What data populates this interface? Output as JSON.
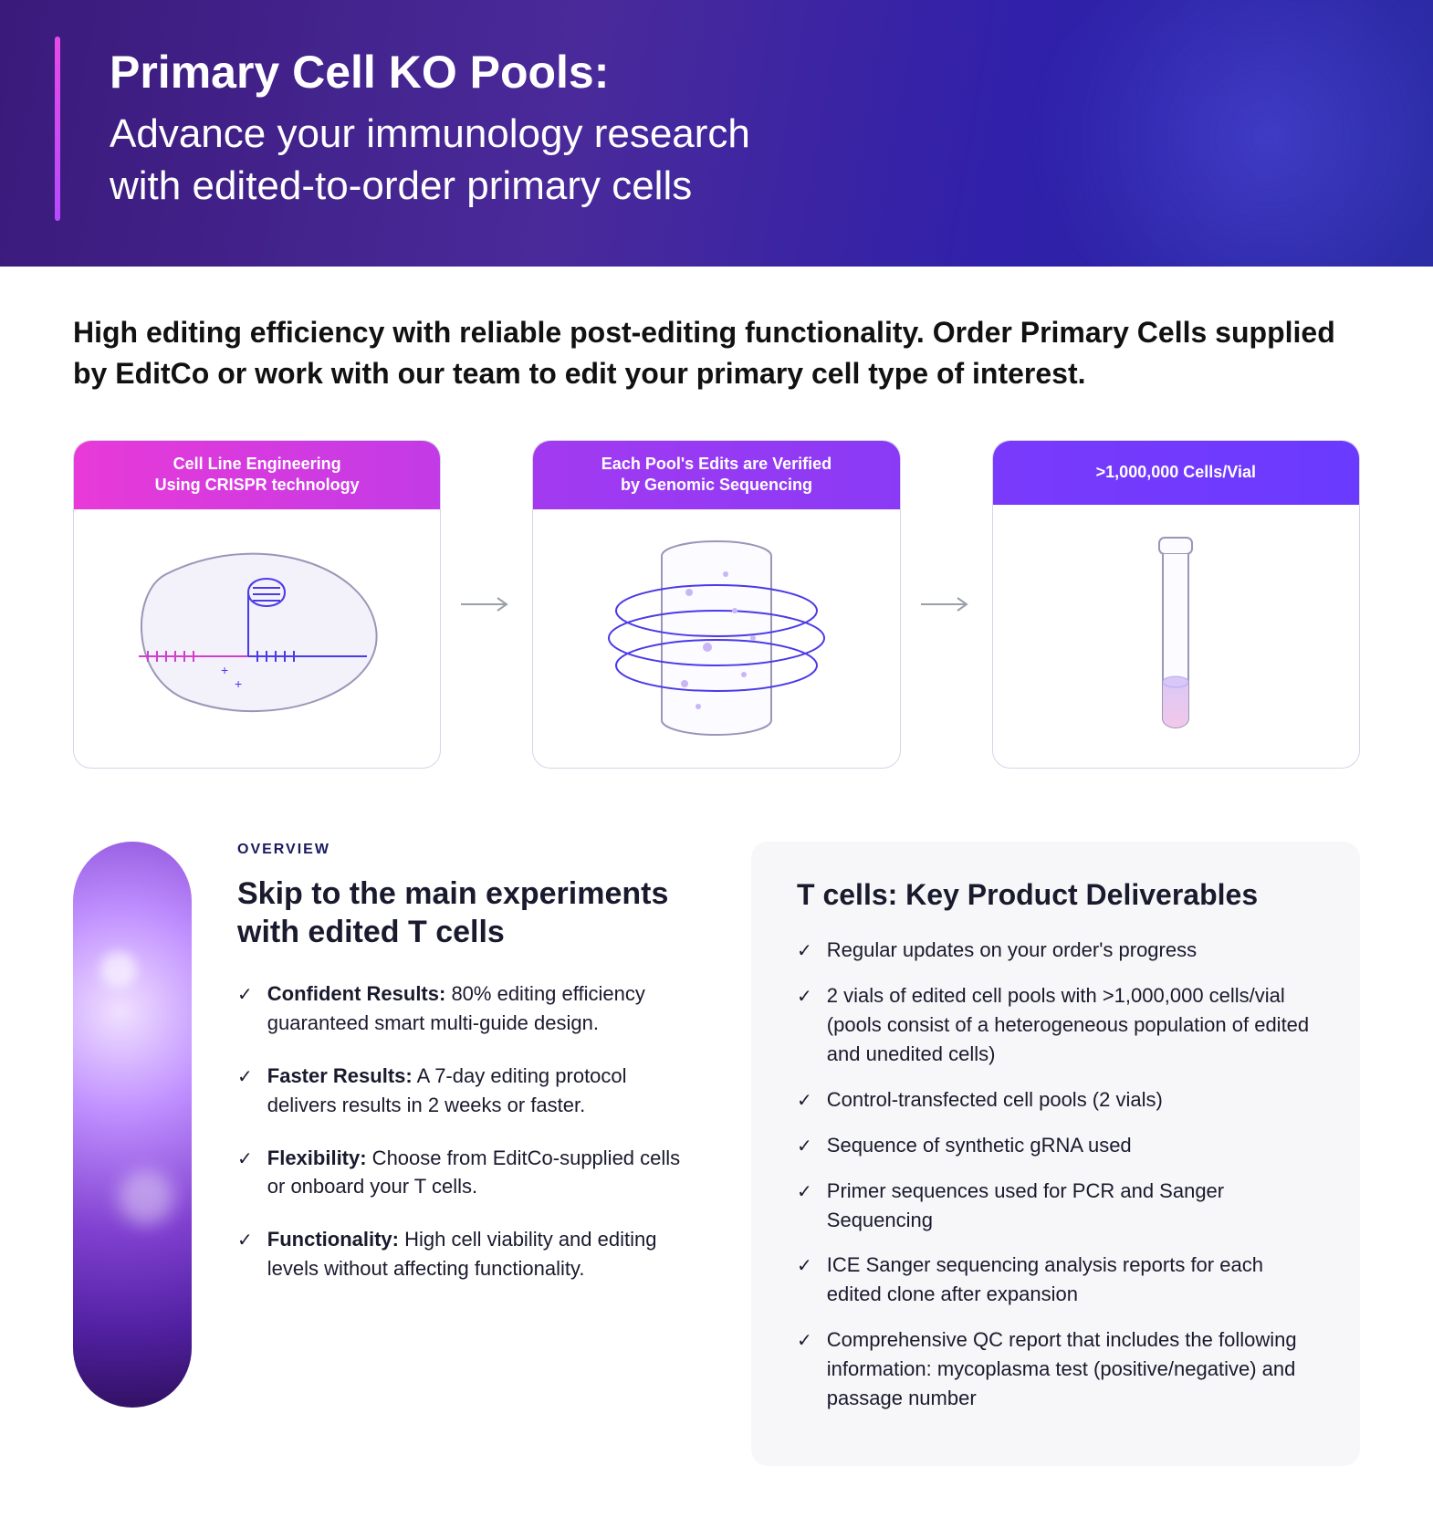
{
  "colors": {
    "hero_gradient_from": "#3a1a7a",
    "hero_gradient_to": "#2a2aa0",
    "accent_bar_from": "#e84ae8",
    "accent_bar_to": "#b54aff",
    "card1_header_from": "#e83ad8",
    "card1_header_to": "#c23be6",
    "card2_header_from": "#a33af0",
    "card2_header_to": "#8a3af6",
    "card3_header_from": "#7a3afb",
    "card3_header_to": "#6a3aff",
    "card_border": "#d8d4e8",
    "eyebrow": "#1a1a60",
    "deliverables_bg": "#f7f7f9",
    "text": "#111111",
    "arrow": "#9aa0a6"
  },
  "hero": {
    "title": "Primary Cell KO Pools:",
    "subtitle_line1": "Advance your immunology research",
    "subtitle_line2": "with edited-to-order primary cells"
  },
  "intro": "High editing efficiency with reliable post-editing functionality. Order Primary Cells supplied by EditCo or work with our team to edit your primary cell type of interest.",
  "cards": [
    {
      "header_line1": "Cell Line Engineering",
      "header_line2": "Using CRISPR technology"
    },
    {
      "header_line1": "Each Pool's Edits are Verified",
      "header_line2": "by Genomic Sequencing"
    },
    {
      "header_line1": ">1,000,000 Cells/Vial",
      "header_line2": ""
    }
  ],
  "overview": {
    "eyebrow": "OVERVIEW",
    "heading": "Skip to the main experiments with edited T cells",
    "items": [
      {
        "bold": "Confident Results:",
        "text": " 80% editing efficiency guaranteed smart multi-guide design."
      },
      {
        "bold": "Faster Results:",
        "text": " A 7-day editing protocol delivers results in 2 weeks or faster."
      },
      {
        "bold": "Flexibility:",
        "text": " Choose from EditCo-supplied cells or onboard your T cells."
      },
      {
        "bold": "Functionality:",
        "text": " High cell viability and editing levels without affecting functionality."
      }
    ]
  },
  "deliverables": {
    "heading": "T cells: Key Product Deliverables",
    "items": [
      "Regular updates on your order's progress",
      "2 vials of edited cell pools with >1,000,000 cells/vial (pools consist of a heterogeneous population of edited and unedited cells)",
      "Control-transfected cell pools (2 vials)",
      "Sequence of synthetic gRNA used",
      "Primer sequences used for PCR and Sanger Sequencing",
      "ICE Sanger sequencing analysis reports for each edited clone after expansion",
      "Comprehensive QC report that includes the following information: mycoplasma test (positive/negative) and passage number"
    ]
  }
}
